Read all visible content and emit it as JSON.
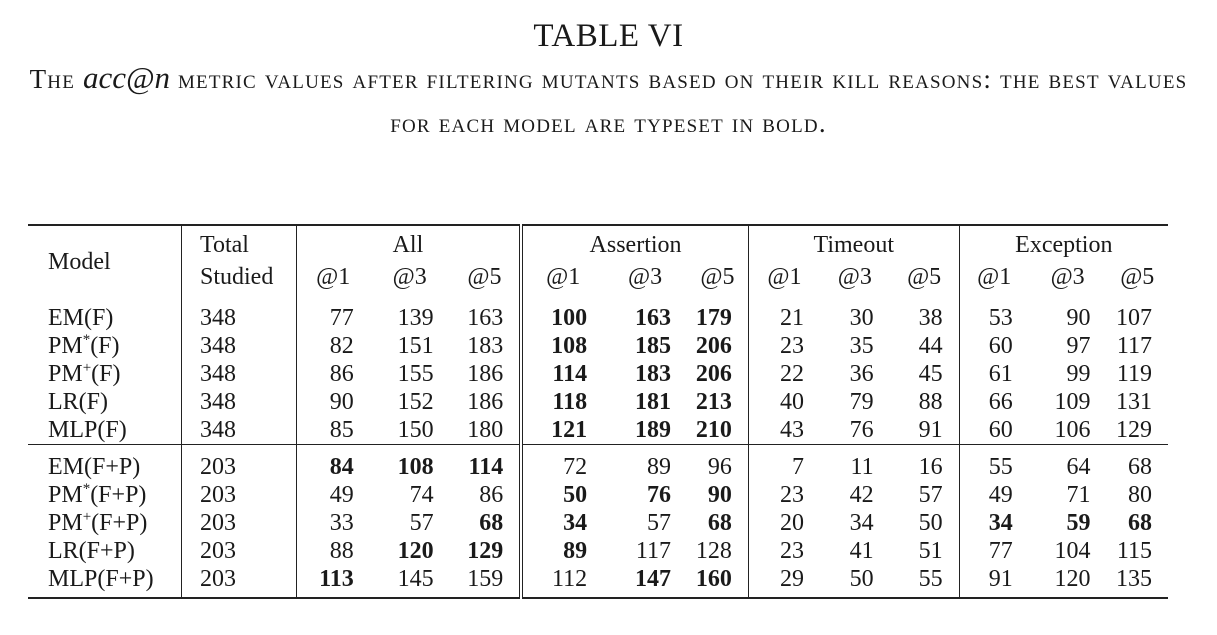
{
  "caption": {
    "label": "TABLE VI",
    "pre": "The ",
    "math": "acc@n",
    "post": " metric values after filtering mutants based on their kill reasons: the best values for each model are typeset in bold."
  },
  "header": {
    "model": "Model",
    "total_line1": "Total",
    "total_line2": "Studied",
    "groups": [
      "All",
      "Assertion",
      "Timeout",
      "Exception"
    ],
    "subcols": [
      "@1",
      "@3",
      "@5"
    ]
  },
  "rows": [
    {
      "base": "EM",
      "sup": "",
      "suffix": "(F)",
      "total": "348",
      "values": [
        "77",
        "139",
        "163",
        "100",
        "163",
        "179",
        "21",
        "30",
        "38",
        "53",
        "90",
        "107"
      ],
      "bold": [
        false,
        false,
        false,
        true,
        true,
        true,
        false,
        false,
        false,
        false,
        false,
        false
      ]
    },
    {
      "base": "PM",
      "sup": "*",
      "suffix": "(F)",
      "total": "348",
      "values": [
        "82",
        "151",
        "183",
        "108",
        "185",
        "206",
        "23",
        "35",
        "44",
        "60",
        "97",
        "117"
      ],
      "bold": [
        false,
        false,
        false,
        true,
        true,
        true,
        false,
        false,
        false,
        false,
        false,
        false
      ]
    },
    {
      "base": "PM",
      "sup": "+",
      "suffix": "(F)",
      "total": "348",
      "values": [
        "86",
        "155",
        "186",
        "114",
        "183",
        "206",
        "22",
        "36",
        "45",
        "61",
        "99",
        "119"
      ],
      "bold": [
        false,
        false,
        false,
        true,
        true,
        true,
        false,
        false,
        false,
        false,
        false,
        false
      ]
    },
    {
      "base": "LR",
      "sup": "",
      "suffix": "(F)",
      "total": "348",
      "values": [
        "90",
        "152",
        "186",
        "118",
        "181",
        "213",
        "40",
        "79",
        "88",
        "66",
        "109",
        "131"
      ],
      "bold": [
        false,
        false,
        false,
        true,
        true,
        true,
        false,
        false,
        false,
        false,
        false,
        false
      ]
    },
    {
      "base": "MLP",
      "sup": "",
      "suffix": "(F)",
      "total": "348",
      "values": [
        "85",
        "150",
        "180",
        "121",
        "189",
        "210",
        "43",
        "76",
        "91",
        "60",
        "106",
        "129"
      ],
      "bold": [
        false,
        false,
        false,
        true,
        true,
        true,
        false,
        false,
        false,
        false,
        false,
        false
      ]
    },
    {
      "base": "EM",
      "sup": "",
      "suffix": "(F+P)",
      "total": "203",
      "values": [
        "84",
        "108",
        "114",
        "72",
        "89",
        "96",
        "7",
        "11",
        "16",
        "55",
        "64",
        "68"
      ],
      "bold": [
        true,
        true,
        true,
        false,
        false,
        false,
        false,
        false,
        false,
        false,
        false,
        false
      ]
    },
    {
      "base": "PM",
      "sup": "*",
      "suffix": "(F+P)",
      "total": "203",
      "values": [
        "49",
        "74",
        "86",
        "50",
        "76",
        "90",
        "23",
        "42",
        "57",
        "49",
        "71",
        "80"
      ],
      "bold": [
        false,
        false,
        false,
        true,
        true,
        true,
        false,
        false,
        false,
        false,
        false,
        false
      ]
    },
    {
      "base": "PM",
      "sup": "+",
      "suffix": "(F+P)",
      "total": "203",
      "values": [
        "33",
        "57",
        "68",
        "34",
        "57",
        "68",
        "20",
        "34",
        "50",
        "34",
        "59",
        "68"
      ],
      "bold": [
        false,
        false,
        true,
        true,
        false,
        true,
        false,
        false,
        false,
        true,
        true,
        true
      ]
    },
    {
      "base": "LR",
      "sup": "",
      "suffix": "(F+P)",
      "total": "203",
      "values": [
        "88",
        "120",
        "129",
        "89",
        "117",
        "128",
        "23",
        "41",
        "51",
        "77",
        "104",
        "115"
      ],
      "bold": [
        false,
        true,
        true,
        true,
        false,
        false,
        false,
        false,
        false,
        false,
        false,
        false
      ]
    },
    {
      "base": "MLP",
      "sup": "",
      "suffix": "(F+P)",
      "total": "203",
      "values": [
        "113",
        "145",
        "159",
        "112",
        "147",
        "160",
        "29",
        "50",
        "55",
        "91",
        "120",
        "135"
      ],
      "bold": [
        true,
        false,
        false,
        false,
        true,
        true,
        false,
        false,
        false,
        false,
        false,
        false
      ]
    }
  ]
}
